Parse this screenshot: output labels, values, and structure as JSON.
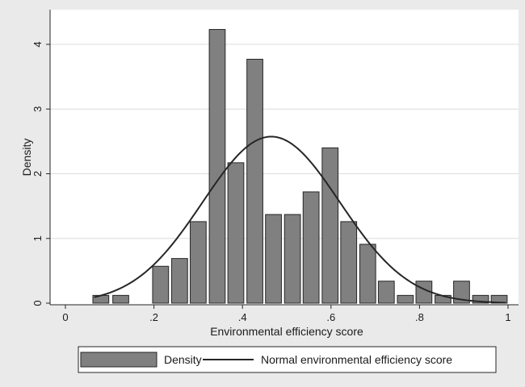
{
  "chart_data": {
    "type": "bar",
    "title": "",
    "xlabel": "Environmental efficiency score",
    "ylabel": "Density",
    "xlim": [
      0,
      1
    ],
    "ylim": [
      0,
      4.3
    ],
    "x_ticks": [
      0,
      0.2,
      0.4,
      0.6,
      0.8,
      1
    ],
    "x_tick_labels": [
      "0",
      ".2",
      ".4",
      ".6",
      ".8",
      "1"
    ],
    "y_ticks": [
      0,
      1,
      2,
      3,
      4
    ],
    "y_tick_labels": [
      "0",
      "1",
      "2",
      "3",
      "4"
    ],
    "grid": true,
    "legend_position": "bottom",
    "colors": {
      "bars": "#808080",
      "bar_outline": "#262626",
      "curve": "#262626",
      "plot_bg": "#ffffff",
      "outer_bg": "#eaeaea",
      "grid": "#dcdcdc"
    },
    "series": [
      {
        "name": "Density",
        "type": "bar",
        "x": [
          0.08,
          0.125,
          0.215,
          0.258,
          0.3,
          0.343,
          0.385,
          0.428,
          0.47,
          0.513,
          0.555,
          0.598,
          0.64,
          0.683,
          0.725,
          0.768,
          0.81,
          0.853,
          0.895,
          0.938,
          0.98
        ],
        "values": [
          0.12,
          0.12,
          0.57,
          0.69,
          1.26,
          4.23,
          2.17,
          3.77,
          1.37,
          1.37,
          1.72,
          2.4,
          1.26,
          0.91,
          0.34,
          0.12,
          0.34,
          0.12,
          0.34,
          0.12,
          0.12
        ]
      },
      {
        "name": "Normal environmental efficiency score",
        "type": "line",
        "mean": 0.465,
        "sd": 0.155
      }
    ]
  }
}
